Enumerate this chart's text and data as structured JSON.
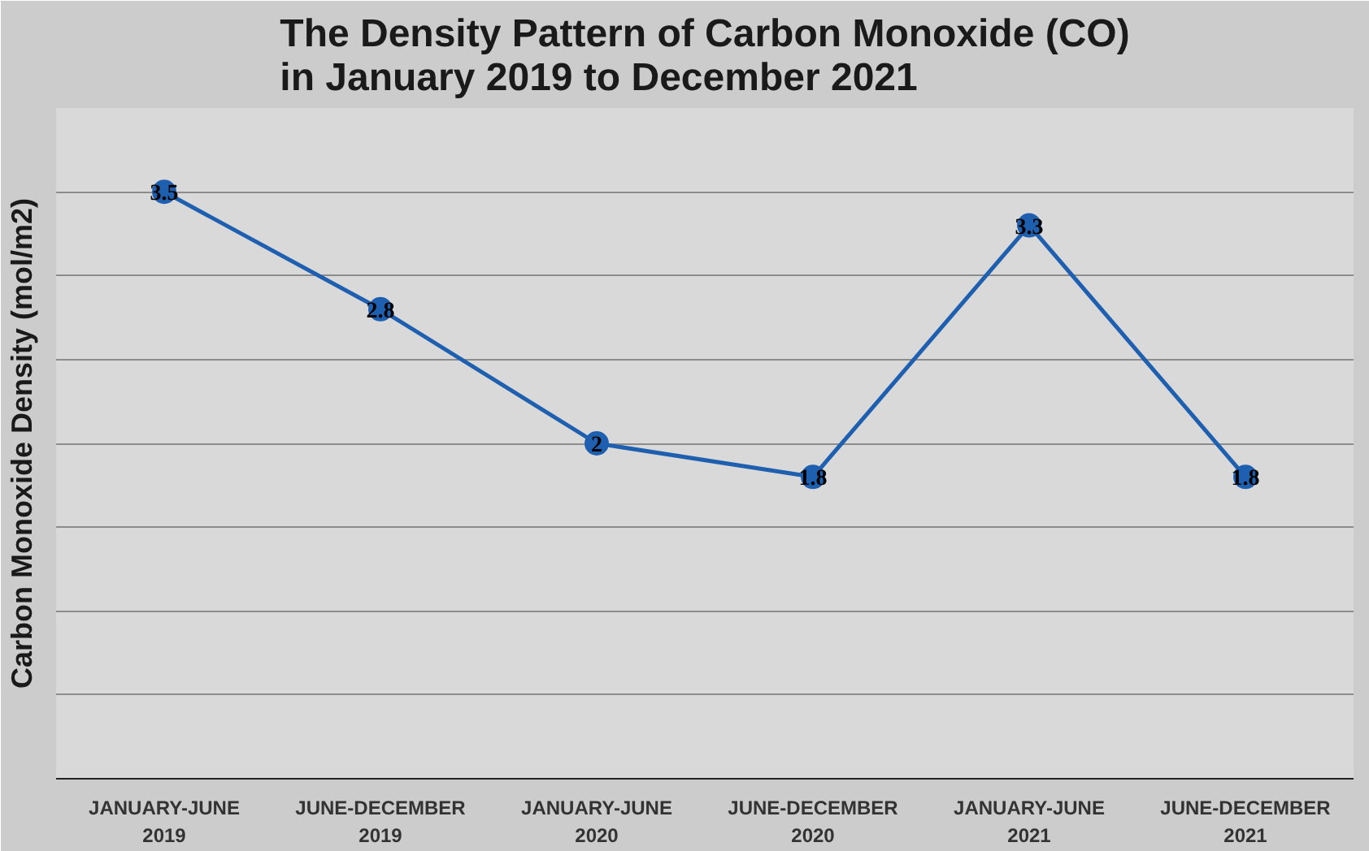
{
  "chart_data": {
    "type": "line",
    "title": "The Density Pattern of Carbon Monoxide (CO)\nin January 2019 to December 2021",
    "ylabel": "Carbon Monoxide Density (mol/m2)",
    "categories": [
      "JANUARY-JUNE\n2019",
      "JUNE-DECEMBER\n2019",
      "JANUARY-JUNE\n2020",
      "JUNE-DECEMBER\n2020",
      "JANUARY-JUNE\n2021",
      "JUNE-DECEMBER\n2021"
    ],
    "series": [
      {
        "color": "#1f5fb0",
        "values": [
          3.5,
          2.8,
          2,
          1.8,
          3.3,
          1.8
        ]
      }
    ],
    "ylim": [
      0,
      4
    ],
    "yticks": [
      {
        "value": 0,
        "label": null
      },
      {
        "value": 0.5,
        "label": null
      },
      {
        "value": 1,
        "label": null
      },
      {
        "value": 1.5,
        "label": null
      },
      {
        "value": 2,
        "label": null
      },
      {
        "value": 2.5,
        "label": null
      },
      {
        "value": 3,
        "label": null
      },
      {
        "value": 3.5,
        "label": null
      },
      {
        "value": 4,
        "label": null
      }
    ],
    "tick_labels": "x",
    "grid": "y",
    "marker": "circle",
    "line_style": "solid",
    "data_labels": true
  }
}
